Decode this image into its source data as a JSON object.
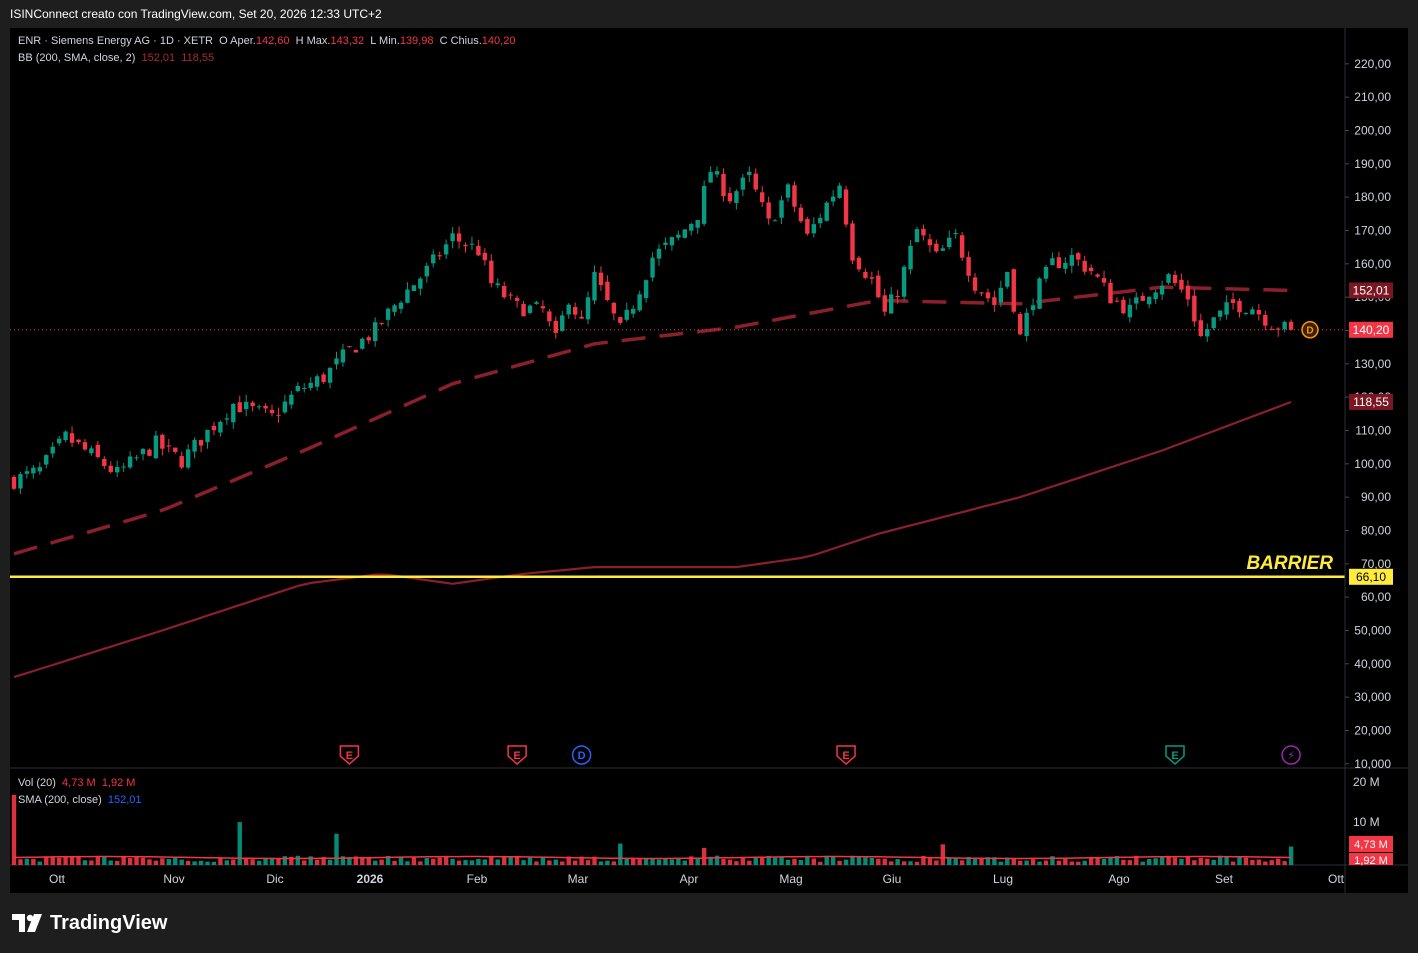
{
  "header": {
    "title": "ISINConnect creato con TradingView.com, Set 20, 2026 12:33 UTC+2"
  },
  "legend": {
    "symbol": "ENR · Siemens Energy AG · 1D · XETR",
    "o_label": "O",
    "open_label": "Aper.",
    "open": "142,60",
    "h_label": "H",
    "high_label": "Max.",
    "high": "143,32",
    "l_label": "L",
    "low_label": "Min.",
    "low": "139,98",
    "c_label": "C",
    "close_label": "Chius.",
    "close": "140,20",
    "bb_label": "BB (200, SMA, close, 2)",
    "bb_upper": "152,01",
    "bb_lower": "118,55",
    "vol_label": "Vol (20)",
    "vol_value": "4,73 M",
    "vol_ma": "1,92 M",
    "sma_label": "SMA (200, close)",
    "sma_value": "152,01"
  },
  "annotation": {
    "barrier_label": "BARRIER",
    "barrier_value": "66,10"
  },
  "badges": {
    "upper": "152,01",
    "price": "140,20",
    "lower": "118,55",
    "vol": "4,73 M",
    "vol_ma": "1,92 M"
  },
  "brand": {
    "name": "TradingView"
  },
  "colors": {
    "up": "#089981",
    "down": "#f23645",
    "band": "#8b1f2b",
    "barrier": "#ffeb3b",
    "grid": "#2a2e39"
  },
  "chart_data": {
    "type": "candlestick",
    "y_ticks": [
      "220,00",
      "210,00",
      "200,00",
      "190,00",
      "180,00",
      "170,00",
      "160,00",
      "150,00",
      "140,00",
      "130,00",
      "120,00",
      "110,00",
      "100,00",
      "90,00",
      "80,00",
      "70,00",
      "60,00",
      "50,000",
      "40,000",
      "30,000",
      "20,000",
      "10,000"
    ],
    "y_tick_values": [
      220,
      210,
      200,
      190,
      180,
      170,
      160,
      150,
      140,
      130,
      120,
      110,
      100,
      90,
      80,
      70,
      60,
      50,
      40,
      30,
      20,
      10
    ],
    "x_labels": [
      "Ott",
      "Nov",
      "Dic",
      "2026",
      "Feb",
      "Mar",
      "Apr",
      "Mag",
      "Giu",
      "Lug",
      "Ago",
      "Set",
      "Ott"
    ],
    "ylim": [
      0,
      224
    ],
    "price_path": [
      [
        0,
        95
      ],
      [
        4,
        98
      ],
      [
        8,
        108
      ],
      [
        11,
        104
      ],
      [
        16,
        97
      ],
      [
        22,
        106
      ],
      [
        26,
        101
      ],
      [
        34,
        118
      ],
      [
        40,
        114
      ],
      [
        44,
        122
      ],
      [
        48,
        126
      ],
      [
        52,
        134
      ],
      [
        56,
        140
      ],
      [
        60,
        150
      ],
      [
        64,
        158
      ],
      [
        68,
        168
      ],
      [
        72,
        164
      ],
      [
        74,
        154
      ],
      [
        78,
        147
      ],
      [
        82,
        146
      ],
      [
        84,
        137
      ],
      [
        86,
        150
      ],
      [
        88,
        142
      ],
      [
        90,
        156
      ],
      [
        92,
        148
      ],
      [
        94,
        140
      ],
      [
        96,
        148
      ],
      [
        99,
        162
      ],
      [
        103,
        168
      ],
      [
        106,
        175
      ],
      [
        108,
        188
      ],
      [
        111,
        180
      ],
      [
        114,
        186
      ],
      [
        117,
        172
      ],
      [
        120,
        182
      ],
      [
        123,
        168
      ],
      [
        126,
        178
      ],
      [
        128,
        184
      ],
      [
        130,
        163
      ],
      [
        133,
        155
      ],
      [
        135,
        145
      ],
      [
        137,
        152
      ],
      [
        140,
        170
      ],
      [
        143,
        162
      ],
      [
        146,
        168
      ],
      [
        149,
        154
      ],
      [
        152,
        148
      ],
      [
        154,
        158
      ],
      [
        156,
        138
      ],
      [
        158,
        150
      ],
      [
        161,
        160
      ],
      [
        164,
        162
      ],
      [
        167,
        158
      ],
      [
        170,
        150
      ],
      [
        173,
        146
      ],
      [
        176,
        152
      ],
      [
        179,
        156
      ],
      [
        182,
        150
      ],
      [
        184,
        138
      ],
      [
        186,
        143
      ],
      [
        189,
        148
      ],
      [
        192,
        147
      ],
      [
        195,
        142
      ],
      [
        198,
        140
      ]
    ],
    "bb_upper": [
      [
        0,
        73
      ],
      [
        23,
        86
      ],
      [
        45,
        104
      ],
      [
        68,
        124
      ],
      [
        90,
        136
      ],
      [
        112,
        141
      ],
      [
        134,
        149
      ],
      [
        156,
        148
      ],
      [
        178,
        153
      ],
      [
        198,
        152
      ]
    ],
    "bb_lower": [
      [
        0,
        36
      ],
      [
        23,
        50
      ],
      [
        45,
        64
      ],
      [
        57,
        67
      ],
      [
        68,
        64
      ],
      [
        79,
        67
      ],
      [
        90,
        69
      ],
      [
        112,
        69
      ],
      [
        123,
        72
      ],
      [
        134,
        79
      ],
      [
        156,
        90
      ],
      [
        178,
        104
      ],
      [
        198,
        118.55
      ]
    ],
    "barrier": 66.1,
    "vol_ylim": [
      0,
      23
    ],
    "events": [
      {
        "type": "earnings",
        "label": "E",
        "color": "#f23645"
      },
      {
        "type": "earnings",
        "label": "E",
        "color": "#f23645"
      },
      {
        "type": "dividend",
        "label": "D",
        "color": "#2962ff"
      },
      {
        "type": "earnings",
        "label": "E",
        "color": "#f23645"
      },
      {
        "type": "earnings",
        "label": "E",
        "color": "#089981"
      },
      {
        "type": "split",
        "label": "⚡",
        "color": "#9c27b0"
      }
    ],
    "event_days": [
      52,
      78,
      88,
      129,
      180,
      198
    ]
  }
}
